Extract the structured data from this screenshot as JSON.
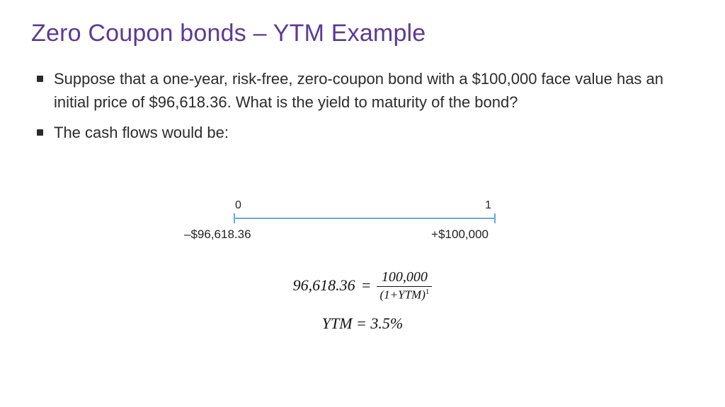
{
  "title": "Zero Coupon bonds – YTM Example",
  "bullets": [
    "Suppose that a one-year, risk-free, zero-coupon bond with a $100,000 face value has an initial price of $96,618.36. What is the yield to maturity of the bond?",
    "The cash flows would be:"
  ],
  "timeline": {
    "line_color": "#6fa8d8",
    "top_left": "0",
    "top_right": "1",
    "bottom_left": "–$96,618.36",
    "bottom_right": "+$100,000"
  },
  "formula": {
    "lhs": "96,618.36",
    "eq": "=",
    "numerator": "100,000",
    "denominator_open": "(1+",
    "denominator_var": "YTM",
    "denominator_close": ")",
    "denominator_exp": "1",
    "result_var": "YTM",
    "result_eq": "=",
    "result_val": "3.5%"
  },
  "colors": {
    "title": "#5b3a96",
    "text": "#2b2b2b",
    "background": "#ffffff"
  },
  "fonts": {
    "title_size_pt": 26,
    "body_size_pt": 17,
    "formula_size_pt": 17
  }
}
